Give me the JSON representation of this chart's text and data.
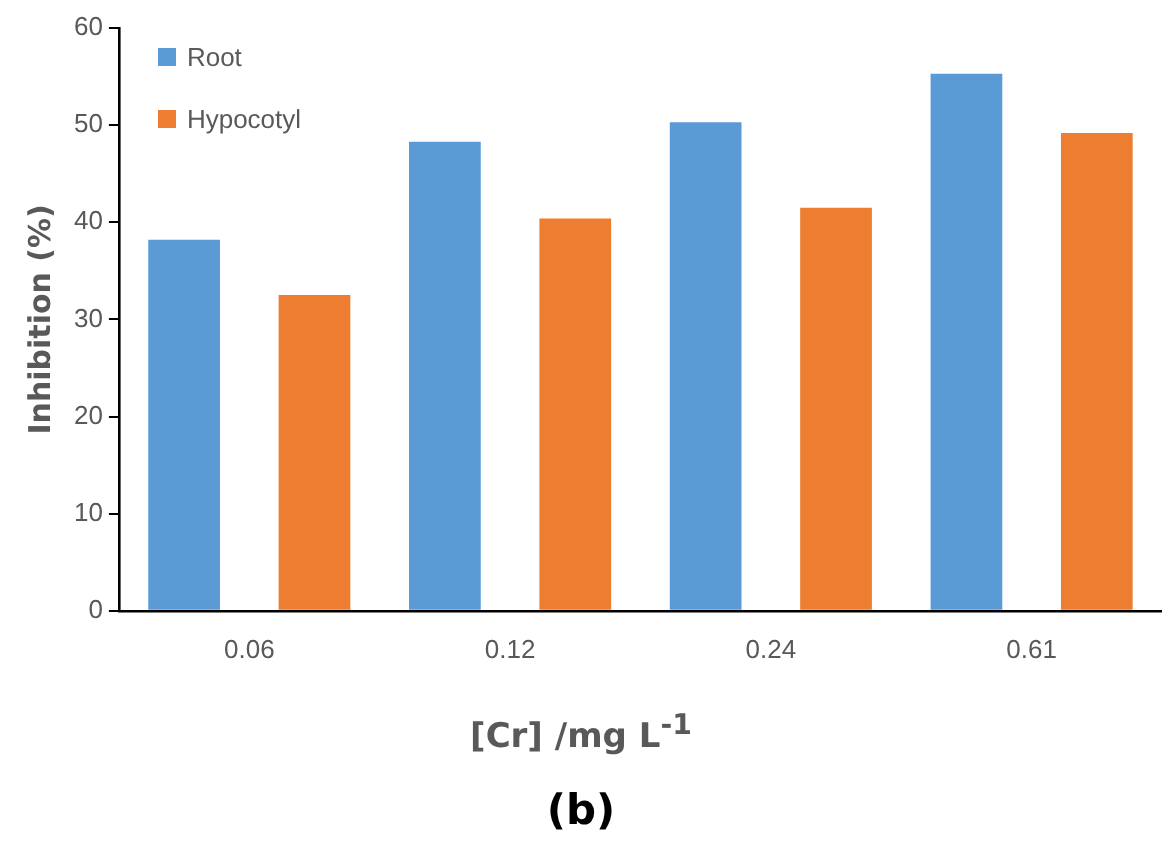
{
  "chart_data": {
    "type": "bar",
    "ylabel": "Inhibition (%)",
    "xlabel": "[Cr] /mg L$^{-1}$",
    "annotations": [
      "(b)"
    ],
    "categories": [
      "0.06",
      "0.12",
      "0.24",
      "0.61"
    ],
    "series": [
      {
        "name": "Root",
        "color": "#5b9bd5",
        "values": [
          38.2,
          48.3,
          50.3,
          55.3
        ]
      },
      {
        "name": "Hypocotyl",
        "color": "#ed7d31",
        "values": [
          32.5,
          40.4,
          41.5,
          49.2
        ]
      }
    ],
    "ylim": [
      0,
      60
    ],
    "yticks": [
      0,
      10,
      20,
      30,
      40,
      50,
      60
    ],
    "grid": false,
    "legend": "top left"
  }
}
